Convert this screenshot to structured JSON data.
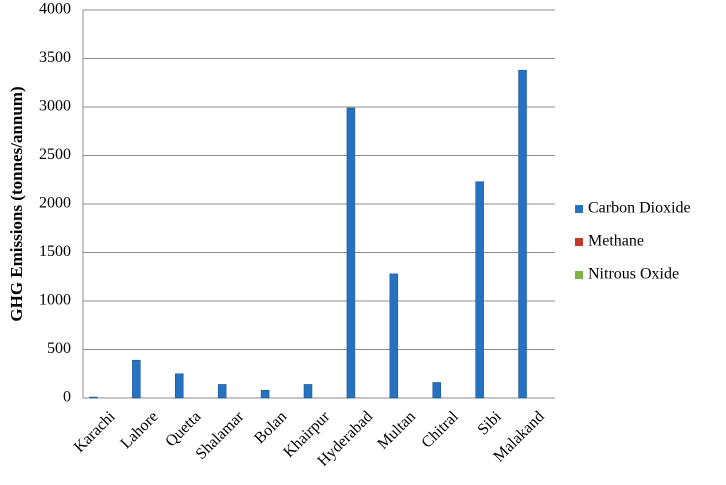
{
  "chart_data": {
    "type": "bar",
    "y_label": "GHG Emissions (tonnes/annum)",
    "categories": [
      "Karachi",
      "Lahore",
      "Quetta",
      "Shalamar",
      "Bolan",
      "Khairpur",
      "Hyderabad",
      "Multan",
      "Chitral",
      "Sibi",
      "Malakand"
    ],
    "series": [
      {
        "name": "Carbon Dioxide",
        "color": "#2472c0",
        "values": [
          10,
          390,
          250,
          140,
          80,
          140,
          2990,
          1280,
          160,
          2230,
          3380
        ]
      },
      {
        "name": "Methane",
        "color": "#c0392b",
        "values": [
          0,
          0,
          0,
          0,
          0,
          0,
          0,
          0,
          0,
          0,
          0
        ]
      },
      {
        "name": "Nitrous Oxide",
        "color": "#7cb342",
        "values": [
          0,
          0,
          0,
          0,
          0,
          0,
          0,
          0,
          0,
          0,
          0
        ]
      }
    ],
    "ylim": [
      0,
      4000
    ],
    "yticks": [
      0,
      500,
      1000,
      1500,
      2000,
      2500,
      3000,
      3500,
      4000
    ],
    "grid": true,
    "legend": "right"
  }
}
